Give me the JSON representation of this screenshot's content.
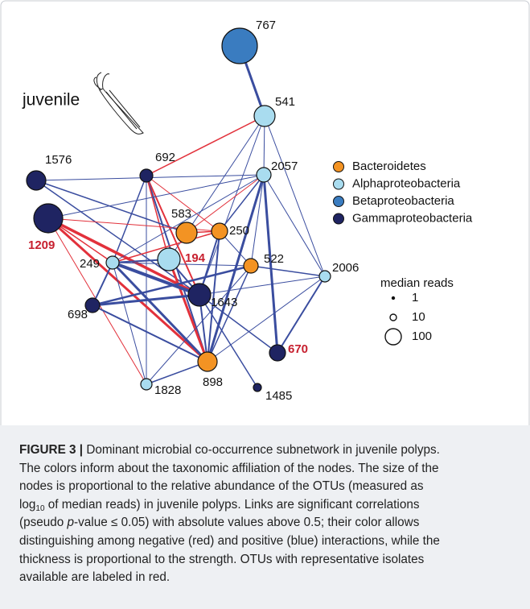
{
  "figure": {
    "tag": "juvenile",
    "legend": [
      {
        "label": "Bacteroidetes",
        "color": "#f39323"
      },
      {
        "label": "Alphaproteobacteria",
        "color": "#a9dcef"
      },
      {
        "label": "Betaproteobacteria",
        "color": "#3a7cc0"
      },
      {
        "label": "Gammaproteobacteria",
        "color": "#1f2462"
      }
    ],
    "size_legend": {
      "title": "median reads",
      "items": [
        "1",
        "10",
        "100"
      ]
    },
    "nodes": [
      {
        "label": "767",
        "group": 2,
        "red_label": false
      },
      {
        "label": "541",
        "group": 1,
        "red_label": false
      },
      {
        "label": "2057",
        "group": 1,
        "red_label": false
      },
      {
        "label": "692",
        "group": 3,
        "red_label": false
      },
      {
        "label": "1576",
        "group": 3,
        "red_label": false
      },
      {
        "label": "1209",
        "group": 3,
        "red_label": true
      },
      {
        "label": "583",
        "group": 0,
        "red_label": false
      },
      {
        "label": "250",
        "group": 0,
        "red_label": false
      },
      {
        "label": "194",
        "group": 1,
        "red_label": true
      },
      {
        "label": "522",
        "group": 0,
        "red_label": false
      },
      {
        "label": "249",
        "group": 1,
        "red_label": false
      },
      {
        "label": "1643",
        "group": 3,
        "red_label": false
      },
      {
        "label": "2006",
        "group": 1,
        "red_label": false
      },
      {
        "label": "698",
        "group": 3,
        "red_label": false
      },
      {
        "label": "670",
        "group": 3,
        "red_label": true
      },
      {
        "label": "898",
        "group": 0,
        "red_label": false
      },
      {
        "label": "1828",
        "group": 1,
        "red_label": false
      },
      {
        "label": "1485",
        "group": 3,
        "red_label": false
      }
    ]
  },
  "caption": {
    "lines": [
      [
        "FIGURE 3 |",
        " Dominant microbial co-occurrence subnetwork in juvenile polyps."
      ],
      [
        "The colors inform about the taxonomic affiliation of the nodes. The size of the"
      ],
      [
        "nodes is proportional to the relative abundance of the OTUs (measured as"
      ],
      [
        "log",
        "10",
        " of median reads) in juvenile polyps. Links are significant correlations"
      ],
      [
        "(pseudo ",
        "p",
        "-value ≤ 0.05) with absolute values above 0.5; their color allows"
      ],
      [
        "distinguishing among negative (red) and positive (blue) interactions, while the"
      ],
      [
        "thickness is proportional to the strength. OTUs with representative isolates"
      ],
      [
        "available are labeled in red."
      ]
    ]
  }
}
